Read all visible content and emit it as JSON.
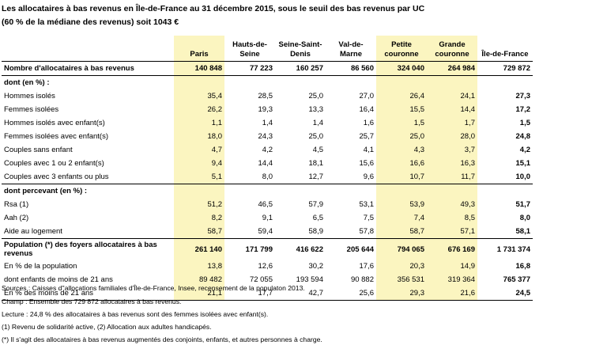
{
  "title": {
    "line1": "Les allocataires à bas revenus en Île-de-France au 31 décembre 2015, sous le seuil des bas revenus par UC",
    "line2": "(60 % de la médiane des revenus) soit 1043 €"
  },
  "table": {
    "columns": [
      "Paris",
      "Hauts-de-Seine",
      "Seine-Saint-Denis",
      "Val-de-Marne",
      "Petite couronne",
      "Grande couronne",
      "Île-de-France"
    ],
    "rows": [
      {
        "label": "Nombre d'allocataires à bas revenus",
        "values": [
          "140 848",
          "77 223",
          "160 257",
          "86 560",
          "324 040",
          "264 984",
          "729 872"
        ]
      },
      {
        "label": "dont (en %) :",
        "values": [
          "",
          "",
          "",
          "",
          "",
          "",
          ""
        ]
      },
      {
        "label": "Hommes isolés",
        "values": [
          "35,4",
          "28,5",
          "25,0",
          "27,0",
          "26,4",
          "24,1",
          "27,3"
        ]
      },
      {
        "label": "Femmes isolées",
        "values": [
          "26,2",
          "19,3",
          "13,3",
          "16,4",
          "15,5",
          "14,4",
          "17,2"
        ]
      },
      {
        "label": "Hommes isolés avec enfant(s)",
        "values": [
          "1,1",
          "1,4",
          "1,4",
          "1,6",
          "1,5",
          "1,7",
          "1,5"
        ]
      },
      {
        "label": "Femmes isolées avec enfant(s)",
        "values": [
          "18,0",
          "24,3",
          "25,0",
          "25,7",
          "25,0",
          "28,0",
          "24,8"
        ]
      },
      {
        "label": "Couples sans enfant",
        "values": [
          "4,7",
          "4,2",
          "4,5",
          "4,1",
          "4,3",
          "3,7",
          "4,2"
        ]
      },
      {
        "label": "Couples avec 1 ou 2 enfant(s)",
        "values": [
          "9,4",
          "14,4",
          "18,1",
          "15,6",
          "16,6",
          "16,3",
          "15,1"
        ]
      },
      {
        "label": "Couples avec 3 enfants ou plus",
        "values": [
          "5,1",
          "8,0",
          "12,7",
          "9,6",
          "10,7",
          "11,7",
          "10,0"
        ]
      },
      {
        "label": "dont percevant (en %) :",
        "values": [
          "",
          "",
          "",
          "",
          "",
          "",
          ""
        ]
      },
      {
        "label": "Rsa (1)",
        "values": [
          "51,2",
          "46,5",
          "57,9",
          "53,1",
          "53,9",
          "49,3",
          "51,7"
        ]
      },
      {
        "label": "Aah  (2)",
        "values": [
          "8,2",
          "9,1",
          "6,5",
          "7,5",
          "7,4",
          "8,5",
          "8,0"
        ]
      },
      {
        "label": "Aide au logement",
        "values": [
          "58,7",
          "59,4",
          "58,9",
          "57,8",
          "58,7",
          "57,1",
          "58,1"
        ]
      },
      {
        "label": "Population (*) des foyers allocataires à bas revenus",
        "values": [
          "261 140",
          "171 799",
          "416 622",
          "205 644",
          "794 065",
          "676 169",
          "1 731 374"
        ]
      },
      {
        "label": "En % de la population",
        "values": [
          "13,8",
          "12,6",
          "30,2",
          "17,6",
          "20,3",
          "14,9",
          "16,8"
        ]
      },
      {
        "label": "dont enfants de moins de 21 ans",
        "values": [
          "89 482",
          "72 055",
          "193 594",
          "90 882",
          "356 531",
          "319 364",
          "765 377"
        ]
      },
      {
        "label": "En % des moins de 21 ans",
        "values": [
          "21,1",
          "17,7",
          "42,7",
          "25,6",
          "29,3",
          "21,6",
          "24,5"
        ]
      }
    ]
  },
  "footnotes": {
    "sources": "Sources : Caisses d''allocations familiales d'Île-de-France, Insee, recensement de la populaton 2013.",
    "champ": "Champ : Ensemble des 729 872 allocataires à bas revenus.",
    "lecture": "Lecture : 24,8 % des allocataires à bas revenus sont des femmes isolées avec enfant(s).",
    "notes": "(1) Revenu de solidarité active, (2) Allocation aux adultes handicapés.",
    "star": "(*) Il s'agit des allocataires à bas revenus augmentés des conjoints, enfants, et autres personnes à charge."
  },
  "colors": {
    "highlight": "#fbf5c0",
    "text": "#000000"
  }
}
